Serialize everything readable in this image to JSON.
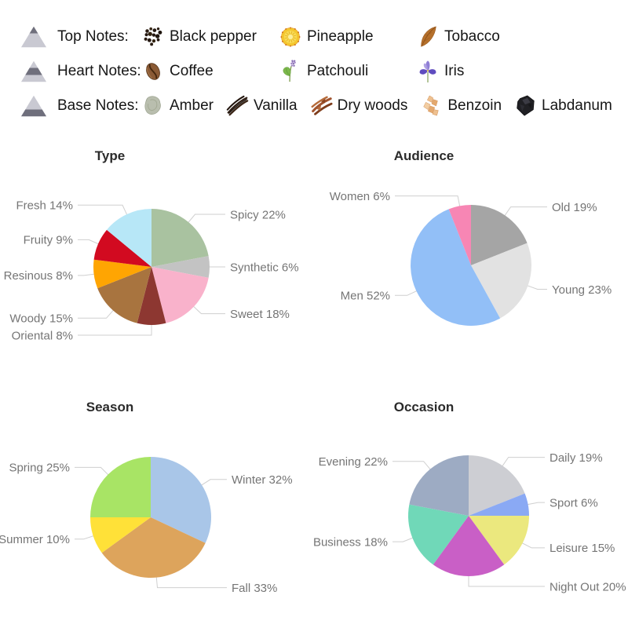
{
  "notes_legend": {
    "rows": [
      {
        "label": "Top Notes:",
        "pyramid": "top",
        "items": [
          {
            "name": "Black pepper",
            "icon": "black-pepper"
          },
          {
            "name": "Pineapple",
            "icon": "pineapple"
          },
          {
            "name": "Tobacco",
            "icon": "tobacco"
          }
        ]
      },
      {
        "label": "Heart Notes:",
        "pyramid": "heart",
        "items": [
          {
            "name": "Coffee",
            "icon": "coffee"
          },
          {
            "name": "Patchouli",
            "icon": "patchouli"
          },
          {
            "name": "Iris",
            "icon": "iris"
          }
        ]
      },
      {
        "label": "Base Notes:",
        "pyramid": "base",
        "items": [
          {
            "name": "Amber",
            "icon": "amber"
          },
          {
            "name": "Vanilla",
            "icon": "vanilla"
          },
          {
            "name": "Dry woods",
            "icon": "dry-woods"
          },
          {
            "name": "Benzoin",
            "icon": "benzoin"
          },
          {
            "name": "Labdanum",
            "icon": "labdanum"
          }
        ]
      }
    ]
  },
  "chart_data": [
    {
      "type": "pie",
      "title": "Type",
      "unit": "%",
      "label_layout": "outside-leader-lines",
      "slices": [
        {
          "label": "Spicy",
          "value": 22,
          "color": "#a9c2a0",
          "side": "right"
        },
        {
          "label": "Synthetic",
          "value": 6,
          "color": "#c3c3c3",
          "side": "right"
        },
        {
          "label": "Sweet",
          "value": 18,
          "color": "#f9b2cb",
          "side": "right"
        },
        {
          "label": "Oriental",
          "value": 8,
          "color": "#8d3731",
          "side": "left"
        },
        {
          "label": "Woody",
          "value": 15,
          "color": "#a8743f",
          "side": "left"
        },
        {
          "label": "Resinous",
          "value": 8,
          "color": "#ffa502",
          "side": "left"
        },
        {
          "label": "Fruity",
          "value": 9,
          "color": "#d20a20",
          "side": "left"
        },
        {
          "label": "Fresh",
          "value": 14,
          "color": "#b7e7f7",
          "side": "left"
        }
      ]
    },
    {
      "type": "pie",
      "title": "Audience",
      "unit": "%",
      "label_layout": "outside-leader-lines",
      "slices": [
        {
          "label": "Old",
          "value": 19,
          "color": "#a5a5a5",
          "side": "right"
        },
        {
          "label": "Young",
          "value": 23,
          "color": "#e2e2e2",
          "side": "right"
        },
        {
          "label": "Men",
          "value": 52,
          "color": "#92bff7",
          "side": "left"
        },
        {
          "label": "Women",
          "value": 6,
          "color": "#f786b4",
          "side": "left"
        }
      ]
    },
    {
      "type": "pie",
      "title": "Season",
      "unit": "%",
      "label_layout": "outside-leader-lines",
      "slices": [
        {
          "label": "Winter",
          "value": 32,
          "color": "#a9c6e8",
          "side": "right"
        },
        {
          "label": "Fall",
          "value": 33,
          "color": "#dda45c",
          "side": "right"
        },
        {
          "label": "Summer",
          "value": 10,
          "color": "#ffe138",
          "side": "left"
        },
        {
          "label": "Spring",
          "value": 25,
          "color": "#a8e465",
          "side": "left"
        }
      ]
    },
    {
      "type": "pie",
      "title": "Occasion",
      "unit": "%",
      "label_layout": "outside-leader-lines",
      "slices": [
        {
          "label": "Daily",
          "value": 19,
          "color": "#cdced3",
          "side": "right"
        },
        {
          "label": "Sport",
          "value": 6,
          "color": "#8aa9f4",
          "side": "right"
        },
        {
          "label": "Leisure",
          "value": 15,
          "color": "#ebe87e",
          "side": "right"
        },
        {
          "label": "Night Out",
          "value": 20,
          "color": "#c95fc6",
          "side": "right"
        },
        {
          "label": "Business",
          "value": 18,
          "color": "#70d8b8",
          "side": "left"
        },
        {
          "label": "Evening",
          "value": 22,
          "color": "#9dabc3",
          "side": "left"
        }
      ]
    }
  ]
}
